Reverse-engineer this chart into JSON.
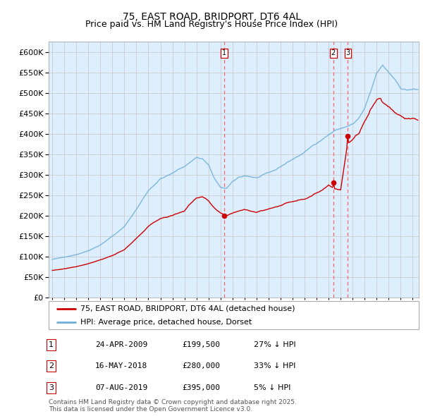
{
  "title": "75, EAST ROAD, BRIDPORT, DT6 4AL",
  "subtitle": "Price paid vs. HM Land Registry's House Price Index (HPI)",
  "legend_property": "75, EAST ROAD, BRIDPORT, DT6 4AL (detached house)",
  "legend_hpi": "HPI: Average price, detached house, Dorset",
  "footnote": "Contains HM Land Registry data © Crown copyright and database right 2025.\nThis data is licensed under the Open Government Licence v3.0.",
  "sale_points": [
    {
      "label": "1",
      "date": "24-APR-2009",
      "price": 199500,
      "pct": "27%",
      "x_year": 2009.31
    },
    {
      "label": "2",
      "date": "16-MAY-2018",
      "price": 280000,
      "pct": "33%",
      "x_year": 2018.38
    },
    {
      "label": "3",
      "date": "07-AUG-2019",
      "price": 395000,
      "pct": "5%",
      "x_year": 2019.6
    }
  ],
  "ylim": [
    0,
    625000
  ],
  "xlim_start": 1994.7,
  "xlim_end": 2025.5,
  "color_property": "#cc0000",
  "color_hpi": "#6baed6",
  "color_bg": "#ddeeff",
  "color_vline": "#cc0000",
  "grid_color": "#cccccc",
  "title_fontsize": 10,
  "subtitle_fontsize": 9,
  "axis_fontsize": 8,
  "legend_fontsize": 8,
  "table_fontsize": 8,
  "footnote_fontsize": 6.5
}
